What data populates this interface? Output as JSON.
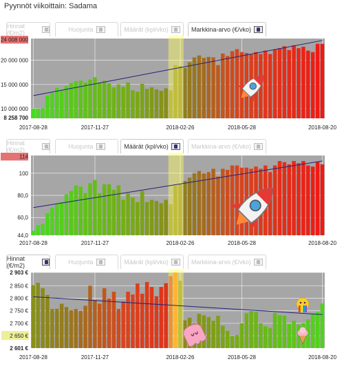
{
  "page_title": "Pyynnöt viikoittain: Sadama",
  "colors": {
    "plot_bg": "#a6a6a6",
    "trend": "#1f1f7a",
    "highlight": "#ffff66",
    "grid": "#ffffff",
    "label_box": "#e57373",
    "price_label_box": "#eeee99"
  },
  "icons": {
    "tab_icon": "chart-icon",
    "emoji_1": "rocket-icon",
    "emoji_2": "rocket-icon",
    "emoji_3": "melting-ice-cream-icon",
    "emoji_4": "ice-cream-icon",
    "emoji_5": "rainbow-face-icon"
  },
  "panels": [
    {
      "tabs": [
        {
          "label": "Hinnat (€/m2)",
          "active": false
        },
        {
          "label": "Huojunta",
          "active": false
        },
        {
          "label": "Määrät (kpl/vko)",
          "active": false
        },
        {
          "label": "Markkina-arvo (€/vko)",
          "active": true
        }
      ]
    },
    {
      "tabs": [
        {
          "label": "Hinnat (€/m2)",
          "active": false
        },
        {
          "label": "Huojunta",
          "active": false
        },
        {
          "label": "Määrät (kpl/vko)",
          "active": true
        },
        {
          "label": "Markkina-arvo (€/vko)",
          "active": false
        }
      ]
    },
    {
      "tabs": [
        {
          "label": "Hinnat (€/m2)",
          "active": true
        },
        {
          "label": "Huojunta",
          "active": false
        },
        {
          "label": "Määrät (kpl/vko)",
          "active": false
        },
        {
          "label": "Markkina-arvo (€/vko)",
          "active": false
        }
      ]
    }
  ],
  "chart_data": [
    {
      "type": "bar",
      "metric": "Markkina-arvo (€/vko)",
      "x_ticks": [
        "2017-08-28",
        "2017-11-27",
        "2018-02-26",
        "2018-05-28",
        "2018-08-20"
      ],
      "y_ticks": [
        "10 000 000",
        "15 000 000",
        "20 000 000"
      ],
      "ylim": [
        8000000,
        24500000
      ],
      "max_label": "24 008 000",
      "min_label": "8 258 700",
      "highlight_index": 31,
      "trend": [
        12700000,
        24100000
      ],
      "values": [
        10000000,
        10000000,
        10100000,
        12700000,
        13300000,
        14300000,
        13900000,
        14700000,
        15300000,
        15700000,
        15800000,
        15400000,
        16000000,
        16500000,
        15400000,
        15800000,
        15200000,
        14400000,
        15000000,
        14500000,
        15400000,
        13800000,
        13500000,
        15100000,
        14100000,
        14400000,
        14000000,
        13700000,
        14200000,
        13800000,
        19000000,
        18800000,
        18400000,
        19600000,
        20600000,
        21000000,
        20500000,
        20700000,
        20600000,
        19000000,
        21400000,
        20900000,
        21900000,
        22300000,
        21700000,
        21500000,
        21200000,
        21700000,
        21300000,
        22000000,
        21300000,
        22200000,
        22500000,
        22900000,
        22100000,
        23100000,
        22500000,
        22800000,
        22000000,
        21700000,
        23400000,
        23400000
      ]
    },
    {
      "type": "bar",
      "metric": "Määrät (kpl/vko)",
      "x_ticks": [
        "2017-08-28",
        "2017-11-27",
        "2018-02-26",
        "2018-05-28",
        "2018-08-20"
      ],
      "y_ticks": [
        "44,0",
        "60,0",
        "80,0",
        "100"
      ],
      "ylim": [
        44,
        116
      ],
      "max_label": "114",
      "highlight_index": 31,
      "trend": [
        69,
        111
      ],
      "values": [
        48,
        53,
        54,
        64,
        69,
        72,
        74,
        81,
        84,
        89,
        88,
        82,
        91,
        94,
        82,
        90,
        90,
        85,
        89,
        76,
        82,
        78,
        74,
        84,
        74,
        76,
        75,
        73,
        76,
        72,
        89,
        90,
        93,
        96,
        100,
        102,
        100,
        101,
        104,
        97,
        104,
        103,
        107,
        107,
        105,
        105,
        104,
        106,
        104,
        107,
        101,
        107,
        111,
        110,
        108,
        111,
        109,
        111,
        107,
        106,
        110,
        108
      ]
    },
    {
      "type": "bar",
      "metric": "Hinnat (€/m2)",
      "x_ticks": [
        "2017-08-28",
        "2017-11-27",
        "2018-02-26",
        "2018-05-28",
        "2018-08-20"
      ],
      "y_ticks": [
        "2 601 €",
        "2 650 €",
        "2 700 €",
        "2 750 €",
        "2 800 €",
        "2 850 €",
        "2 903 €"
      ],
      "ylim": [
        2601,
        2903
      ],
      "max_label": "2 903 €",
      "min_label": "2 601 €",
      "current_label": "2 650 €",
      "highlight_index": 31,
      "trend": [
        2806,
        2735
      ],
      "values": [
        2852,
        2862,
        2840,
        2813,
        2757,
        2758,
        2778,
        2765,
        2752,
        2757,
        2750,
        2770,
        2850,
        2793,
        2778,
        2840,
        2800,
        2826,
        2757,
        2787,
        2826,
        2815,
        2859,
        2818,
        2865,
        2845,
        2808,
        2845,
        2860,
        2888,
        2903,
        2870,
        2712,
        2722,
        2700,
        2738,
        2732,
        2725,
        2710,
        2730,
        2690,
        2670,
        2650,
        2653,
        2700,
        2740,
        2749,
        2745,
        2700,
        2688,
        2682,
        2742,
        2732,
        2730,
        2697,
        2710,
        2695,
        2700,
        2716,
        2736,
        2745,
        2779
      ]
    }
  ]
}
